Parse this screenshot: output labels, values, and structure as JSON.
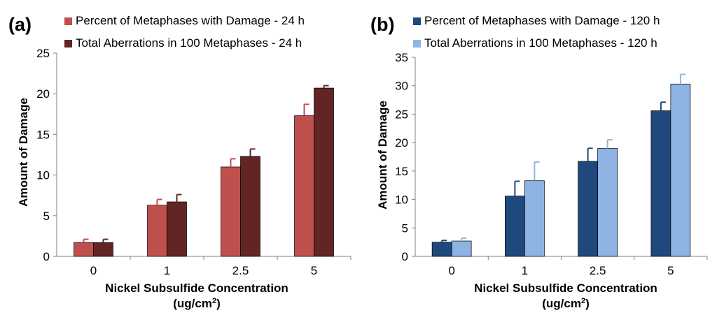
{
  "chart_data": [
    {
      "type": "bar",
      "panel_label": "(a)",
      "categories": [
        "0",
        "1",
        "2.5",
        "5"
      ],
      "series": [
        {
          "name": "Percent of Metaphases with Damage - 24 h",
          "color": "#c0504d",
          "values": [
            1.7,
            6.3,
            11.0,
            17.3
          ],
          "errors": [
            0.4,
            0.7,
            1.0,
            1.4
          ],
          "error_color": "#c0504d"
        },
        {
          "name": "Total Aberrations in 100 Metaphases - 24 h",
          "color": "#632523",
          "values": [
            1.7,
            6.7,
            12.3,
            20.7
          ],
          "errors": [
            0.4,
            0.9,
            0.9,
            0.3
          ],
          "error_color": "#632523"
        }
      ],
      "ylim": [
        0,
        25
      ],
      "yticks": [
        "0",
        "5",
        "10",
        "15",
        "20",
        "25"
      ],
      "ylabel": "Amount of Damage",
      "xlabel_line1": "Nickel Subsulfide Concentration",
      "xlabel_unit_pre": "(ug/cm",
      "xlabel_unit_sup": "2",
      "xlabel_unit_post": ")",
      "legend_position": "top"
    },
    {
      "type": "bar",
      "panel_label": "(b)",
      "categories": [
        "0",
        "1",
        "2.5",
        "5"
      ],
      "series": [
        {
          "name": "Percent of Metaphases with Damage - 120 h",
          "color": "#1f497d",
          "values": [
            2.5,
            10.6,
            16.7,
            25.6
          ],
          "errors": [
            0.3,
            2.6,
            2.3,
            1.5
          ],
          "error_color": "#1f497d"
        },
        {
          "name": "Total Aberrations in 100 Metaphases  - 120 h",
          "color": "#8db4e2",
          "values": [
            2.7,
            13.3,
            19.0,
            30.3
          ],
          "errors": [
            0.5,
            3.3,
            1.5,
            1.7
          ],
          "error_color": "#8db4e2"
        }
      ],
      "ylim": [
        0,
        35
      ],
      "yticks": [
        "0",
        "5",
        "10",
        "15",
        "20",
        "25",
        "30",
        "35"
      ],
      "ylabel": "Amount of Damage",
      "xlabel_line1": "Nickel Subsulfide Concentration",
      "xlabel_unit_pre": "(ug/cm",
      "xlabel_unit_sup": "2",
      "xlabel_unit_post": ")",
      "legend_position": "top"
    }
  ]
}
